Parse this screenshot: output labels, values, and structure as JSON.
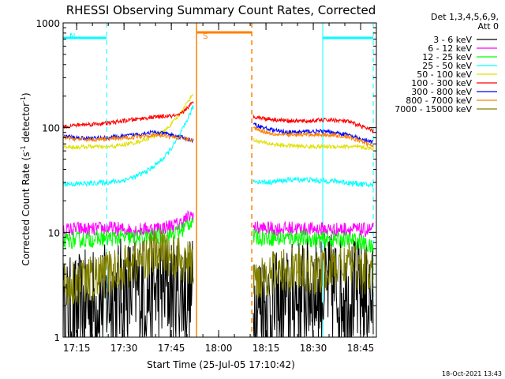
{
  "chart_data": {
    "type": "line",
    "title": "RHESSI Observing Summary Count Rates, Corrected",
    "xlabel": "Start Time (25-Jul-05 17:10:42)",
    "ylabel": "Corrected Count Rate (s",
    "ylabel_sup1": "-1",
    "ylabel_mid": " detector",
    "ylabel_sup2": "-1",
    "ylabel_end": ")",
    "y_scale": "log",
    "xlim": [
      "17:10:42",
      "18:50:00"
    ],
    "ylim": [
      1,
      1000
    ],
    "x_ticks": [
      "17:15",
      "17:30",
      "17:45",
      "18:00",
      "18:15",
      "18:30",
      "18:45"
    ],
    "y_ticks": [
      "1",
      "10",
      "100",
      "1000"
    ],
    "legend_header": [
      "Det 1,3,4,5,6,9,",
      "Att 0"
    ],
    "legend_placement": "right",
    "timestamp": "18-Oct-2021 13:43",
    "series": [
      {
        "name": "3 - 6 keV",
        "color": "#000000",
        "pre": {
          "start": "17:10:42",
          "end": "17:52:00",
          "values": [
            1.6,
            1.8,
            2.1,
            2.3,
            2.6,
            2.8,
            2.7,
            2.9,
            2.7,
            2.6
          ]
        },
        "post": {
          "start": "18:11:00",
          "end": "18:49:00",
          "values": [
            2.2,
            2.0,
            1.8,
            2.4,
            2.7,
            2.8,
            2.9,
            2.7,
            2.5,
            2.2
          ]
        }
      },
      {
        "name": "6 - 12 keV",
        "color": "#ff00ff",
        "pre": {
          "start": "17:10:42",
          "end": "17:52:00",
          "values": [
            10.5,
            10.8,
            10.6,
            11.0,
            10.7,
            10.5,
            10.8,
            11.2,
            12.0,
            15.0
          ]
        },
        "post": {
          "start": "18:11:00",
          "end": "18:49:00",
          "values": [
            11.0,
            10.9,
            10.8,
            11.0,
            10.7,
            10.8,
            10.6,
            10.8,
            10.5,
            10.6
          ]
        }
      },
      {
        "name": "12 - 25 keV",
        "color": "#00ff00",
        "pre": {
          "start": "17:10:42",
          "end": "17:52:00",
          "values": [
            8.2,
            8.5,
            8.6,
            8.8,
            8.9,
            8.7,
            9.0,
            9.2,
            10.0,
            13.5
          ]
        },
        "post": {
          "start": "18:11:00",
          "end": "18:49:00",
          "values": [
            9.0,
            9.0,
            8.7,
            8.9,
            8.7,
            8.5,
            8.6,
            8.5,
            8.2,
            7.0
          ]
        }
      },
      {
        "name": "25 - 50 keV",
        "color": "#00ffff",
        "pre": {
          "start": "17:10:42",
          "end": "17:52:00",
          "values": [
            29,
            29,
            29.5,
            30,
            31,
            34,
            40,
            52,
            80,
            160
          ]
        },
        "post": {
          "start": "18:11:00",
          "end": "18:49:00",
          "values": [
            31,
            30,
            31,
            32,
            32,
            31,
            31,
            30,
            29,
            28
          ]
        }
      },
      {
        "name": "50 - 100 keV",
        "color": "#e0e000",
        "pre": {
          "start": "17:10:42",
          "end": "17:52:00",
          "values": [
            66,
            65,
            66,
            65,
            68,
            72,
            80,
            92,
            130,
            215
          ]
        },
        "post": {
          "start": "18:11:00",
          "end": "18:49:00",
          "values": [
            76,
            71,
            68,
            67,
            66,
            66,
            66,
            66,
            65,
            63
          ]
        }
      },
      {
        "name": "100 - 300 keV",
        "color": "#ff0000",
        "pre": {
          "start": "17:10:42",
          "end": "17:52:00",
          "values": [
            102,
            106,
            108,
            110,
            115,
            120,
            125,
            128,
            130,
            175
          ]
        },
        "post": {
          "start": "18:11:00",
          "end": "18:49:00",
          "values": [
            128,
            122,
            118,
            116,
            115,
            118,
            118,
            115,
            105,
            92
          ]
        }
      },
      {
        "name": "300 - 800 keV",
        "color": "#0000ff",
        "pre": {
          "start": "17:10:42",
          "end": "17:52:00",
          "values": [
            83,
            80,
            79,
            80,
            82,
            86,
            90,
            88,
            82,
            75
          ]
        },
        "post": {
          "start": "18:11:00",
          "end": "18:49:00",
          "values": [
            108,
            98,
            92,
            90,
            92,
            92,
            90,
            86,
            78,
            72
          ]
        }
      },
      {
        "name": "800 - 7000 keV",
        "color": "#ff8000",
        "pre": {
          "start": "17:10:42",
          "end": "17:52:00",
          "values": [
            80,
            78,
            77,
            78,
            79,
            82,
            85,
            84,
            80,
            76
          ]
        },
        "post": {
          "start": "18:11:00",
          "end": "18:49:00",
          "values": [
            100,
            90,
            86,
            85,
            86,
            86,
            85,
            82,
            75,
            66
          ]
        }
      },
      {
        "name": "7000 - 15000 keV",
        "color": "#808000",
        "pre": {
          "start": "17:10:42",
          "end": "17:52:00",
          "values": [
            3.2,
            3.4,
            3.6,
            4.0,
            4.6,
            5.2,
            6.2,
            6.5,
            5.5,
            4.8
          ]
        },
        "post": {
          "start": "18:11:00",
          "end": "18:49:00",
          "values": [
            3.6,
            4.0,
            4.2,
            4.5,
            4.2,
            4.1,
            4.6,
            5.0,
            4.4,
            3.9
          ]
        }
      }
    ],
    "annotations": [
      {
        "kind": "night",
        "label": "N",
        "color": "#00ffff",
        "start": "17:10:42",
        "end": "17:24:30"
      },
      {
        "kind": "night",
        "label": "",
        "color": "#00ffff",
        "start": "18:33:00",
        "end": "18:49:00"
      },
      {
        "kind": "saa",
        "label": "S",
        "color": "#ff8000",
        "start": "17:53:00",
        "end": "18:10:30"
      }
    ],
    "grid": false
  }
}
